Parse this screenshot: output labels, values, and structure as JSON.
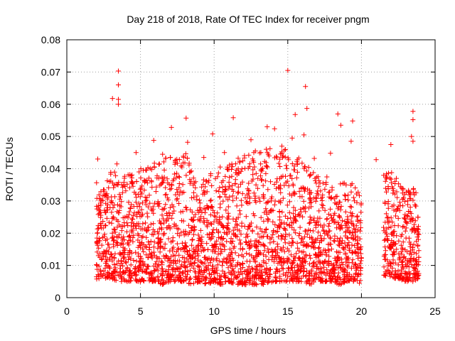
{
  "chart_data": {
    "type": "scatter",
    "title": "Day 218 of 2018, Rate Of TEC Index for receiver pngm",
    "xlabel": "GPS time / hours",
    "ylabel": "ROTI / TECUs",
    "xlim": [
      0,
      25
    ],
    "ylim": [
      0,
      0.08
    ],
    "xticks": [
      0,
      5,
      10,
      15,
      20,
      25
    ],
    "xtick_labels": [
      "0",
      "5",
      "10",
      "15",
      "20",
      "25"
    ],
    "yticks": [
      0,
      0.01,
      0.02,
      0.03,
      0.04,
      0.05,
      0.06,
      0.07,
      0.08
    ],
    "ytick_labels": [
      "0",
      "0.01",
      "0.02",
      "0.03",
      "0.04",
      "0.05",
      "0.06",
      "0.07",
      "0.08"
    ],
    "grid": true,
    "marker": "+",
    "marker_color": "#ff0000",
    "series": [
      {
        "name": "ROTI",
        "color": "#ff0000",
        "points": [
          [
            3.5,
            0.0703
          ],
          [
            3.5,
            0.066
          ],
          [
            3.1,
            0.0618
          ],
          [
            3.5,
            0.0615
          ],
          [
            3.5,
            0.06
          ],
          [
            15.0,
            0.0705
          ],
          [
            16.2,
            0.0655
          ],
          [
            16.3,
            0.0587
          ],
          [
            15.5,
            0.0568
          ],
          [
            23.5,
            0.0578
          ],
          [
            23.5,
            0.0552
          ],
          [
            18.4,
            0.057
          ],
          [
            19.4,
            0.0548
          ],
          [
            18.6,
            0.0535
          ],
          [
            11.3,
            0.0558
          ],
          [
            8.1,
            0.0557
          ],
          [
            13.6,
            0.053
          ],
          [
            14.1,
            0.0524
          ],
          [
            7.1,
            0.0528
          ],
          [
            9.9,
            0.0508
          ],
          [
            23.5,
            0.0485
          ],
          [
            23.4,
            0.05
          ],
          [
            22.0,
            0.0475
          ],
          [
            15.3,
            0.0495
          ],
          [
            16.1,
            0.0505
          ],
          [
            12.5,
            0.049
          ],
          [
            5.9,
            0.0488
          ],
          [
            8.2,
            0.0482
          ],
          [
            19.3,
            0.0485
          ],
          [
            21.0,
            0.0428
          ],
          [
            2.1,
            0.043
          ],
          [
            4.7,
            0.045
          ],
          [
            6.5,
            0.0445
          ],
          [
            10.7,
            0.045
          ],
          [
            14.6,
            0.047
          ],
          [
            17.9,
            0.0448
          ],
          [
            3.4,
            0.0415
          ],
          [
            9.3,
            0.0435
          ],
          [
            12.8,
            0.0455
          ],
          [
            16.8,
            0.0432
          ]
        ],
        "envelope": [
          [
            2.0,
            0.005,
            0.038
          ],
          [
            2.5,
            0.006,
            0.034
          ],
          [
            3.0,
            0.006,
            0.041
          ],
          [
            3.5,
            0.005,
            0.038
          ],
          [
            4.0,
            0.005,
            0.039
          ],
          [
            4.5,
            0.005,
            0.038
          ],
          [
            5.0,
            0.005,
            0.04
          ],
          [
            5.5,
            0.005,
            0.041
          ],
          [
            6.0,
            0.005,
            0.042
          ],
          [
            6.5,
            0.004,
            0.043
          ],
          [
            7.0,
            0.005,
            0.045
          ],
          [
            7.5,
            0.005,
            0.043
          ],
          [
            8.0,
            0.005,
            0.046
          ],
          [
            8.5,
            0.004,
            0.04
          ],
          [
            9.0,
            0.005,
            0.035
          ],
          [
            9.5,
            0.004,
            0.038
          ],
          [
            10.0,
            0.005,
            0.04
          ],
          [
            10.5,
            0.004,
            0.041
          ],
          [
            11.0,
            0.005,
            0.042
          ],
          [
            11.5,
            0.004,
            0.043
          ],
          [
            12.0,
            0.004,
            0.044
          ],
          [
            12.5,
            0.004,
            0.045
          ],
          [
            13.0,
            0.004,
            0.046
          ],
          [
            13.5,
            0.004,
            0.048
          ],
          [
            14.0,
            0.005,
            0.046
          ],
          [
            14.5,
            0.005,
            0.045
          ],
          [
            15.0,
            0.005,
            0.047
          ],
          [
            15.5,
            0.005,
            0.046
          ],
          [
            16.0,
            0.005,
            0.043
          ],
          [
            16.5,
            0.004,
            0.04
          ],
          [
            17.0,
            0.005,
            0.039
          ],
          [
            17.5,
            0.005,
            0.038
          ],
          [
            18.0,
            0.005,
            0.037
          ],
          [
            18.5,
            0.004,
            0.036
          ],
          [
            19.0,
            0.005,
            0.037
          ],
          [
            19.5,
            0.005,
            0.035
          ],
          [
            20.0,
            0.004,
            0.033
          ],
          [
            21.5,
            0.007,
            0.038
          ],
          [
            22.0,
            0.006,
            0.042
          ],
          [
            22.5,
            0.006,
            0.036
          ],
          [
            23.0,
            0.005,
            0.033
          ],
          [
            23.5,
            0.005,
            0.035
          ],
          [
            23.9,
            0.006,
            0.031
          ]
        ]
      }
    ]
  }
}
